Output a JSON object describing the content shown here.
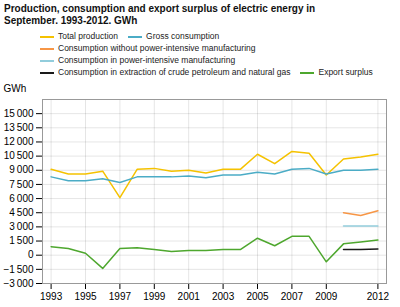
{
  "chart_data": {
    "type": "line",
    "title": "Production, consumption and export surplus of electric energy in\nSeptember. 1993-2012. GWh",
    "ylabel": "GWh",
    "x": [
      1993,
      1994,
      1995,
      1996,
      1997,
      1998,
      1999,
      2000,
      2001,
      2002,
      2003,
      2004,
      2005,
      2006,
      2007,
      2008,
      2009,
      2010,
      2011,
      2012
    ],
    "series": [
      {
        "name": "Total production",
        "color": "#f5c200",
        "values": [
          9100,
          8600,
          8600,
          8900,
          6100,
          9100,
          9200,
          8900,
          9000,
          8700,
          9100,
          9100,
          10700,
          9700,
          11000,
          10800,
          8500,
          10200,
          10400,
          10700
        ]
      },
      {
        "name": "Gross consumption",
        "color": "#4bacc6",
        "values": [
          8300,
          7900,
          7900,
          8100,
          7700,
          8300,
          8300,
          8300,
          8400,
          8200,
          8500,
          8500,
          8800,
          8600,
          9100,
          9200,
          8600,
          9000,
          9000,
          9100
        ]
      },
      {
        "name": "Consumption without power-intensive manufacturing",
        "color": "#f79646",
        "values": [
          null,
          null,
          null,
          null,
          null,
          null,
          null,
          null,
          null,
          null,
          null,
          null,
          null,
          null,
          null,
          null,
          null,
          4500,
          4200,
          4700
        ]
      },
      {
        "name": "Consumption in power-intensive manufacturing",
        "color": "#92cddc",
        "values": [
          null,
          null,
          null,
          null,
          null,
          null,
          null,
          null,
          null,
          null,
          null,
          null,
          null,
          null,
          null,
          null,
          null,
          3100,
          3100,
          3100
        ]
      },
      {
        "name": "Consumption in extraction of crude petroleum and natural gas",
        "color": "#1a1a1a",
        "values": [
          null,
          null,
          null,
          null,
          null,
          null,
          null,
          null,
          null,
          null,
          null,
          null,
          null,
          null,
          null,
          null,
          null,
          600,
          600,
          650
        ]
      },
      {
        "name": "Export surplus",
        "color": "#4ea72e",
        "values": [
          900,
          700,
          200,
          -1400,
          700,
          800,
          600,
          400,
          500,
          500,
          600,
          600,
          1800,
          1000,
          2000,
          2000,
          -700,
          1200,
          1400,
          1600
        ]
      }
    ],
    "xlim": [
      1992.5,
      2012.5
    ],
    "xticks": [
      1993,
      1995,
      1997,
      1999,
      2001,
      2003,
      2005,
      2007,
      2009,
      2012
    ],
    "ylim": [
      -3000,
      16500
    ],
    "yticks": [
      {
        "value": -3000,
        "label": "−3 000"
      },
      {
        "value": -1500,
        "label": "−1 500"
      },
      0,
      {
        "value": 1500,
        "label": "1 500"
      },
      {
        "value": 3000,
        "label": "3 000"
      },
      {
        "value": 4500,
        "label": "4 500"
      },
      {
        "value": 6000,
        "label": "6 000"
      },
      {
        "value": 7500,
        "label": "7 500"
      },
      {
        "value": 9000,
        "label": "9 000"
      },
      {
        "value": 10500,
        "label": "10 500"
      },
      {
        "value": 12000,
        "label": "12 000"
      },
      {
        "value": 13500,
        "label": "13 500"
      },
      {
        "value": 15000,
        "label": "15 000"
      }
    ],
    "grid": true,
    "legend": "top"
  }
}
